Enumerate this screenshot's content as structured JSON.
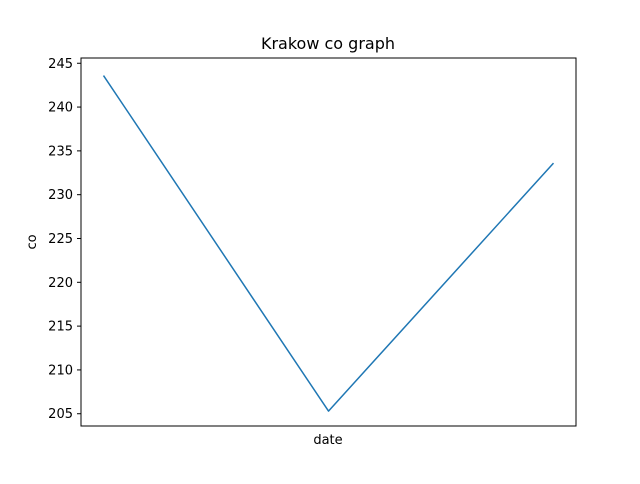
{
  "chart_data": {
    "type": "line",
    "title": "Krakow co graph",
    "xlabel": "date",
    "ylabel": "co",
    "x": [
      0,
      1,
      2
    ],
    "xlim": [
      -0.1,
      2.1
    ],
    "y_ticks": [
      205,
      210,
      215,
      220,
      225,
      230,
      235,
      240,
      245
    ],
    "ylim": [
      203.6,
      245.6
    ],
    "grid": false,
    "series": [
      {
        "values": [
          243.6,
          205.3,
          233.6
        ],
        "color": "#1f77b4"
      }
    ]
  }
}
